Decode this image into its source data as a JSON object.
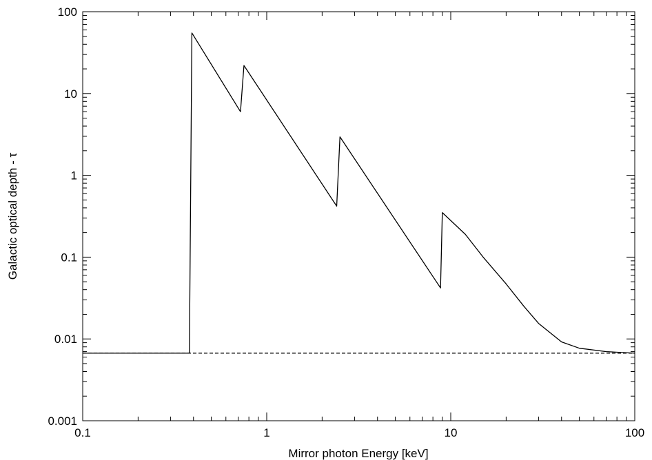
{
  "chart_data": {
    "type": "line",
    "xlabel": "Mirror photon Energy [keV]",
    "ylabel": "Galactic optical depth - τ",
    "x_scale": "log",
    "y_scale": "log",
    "xlim": [
      0.1,
      100
    ],
    "ylim": [
      0.001,
      100
    ],
    "grid": false,
    "x_ticks": [
      {
        "value": 0.1,
        "label": "0.1"
      },
      {
        "value": 1,
        "label": "1"
      },
      {
        "value": 10,
        "label": "10"
      },
      {
        "value": 100,
        "label": "100"
      }
    ],
    "y_ticks": [
      {
        "value": 0.001,
        "label": "0.001"
      },
      {
        "value": 0.01,
        "label": "0.01"
      },
      {
        "value": 0.1,
        "label": "0.1"
      },
      {
        "value": 1,
        "label": "1"
      },
      {
        "value": 10,
        "label": "10"
      },
      {
        "value": 100,
        "label": "100"
      }
    ],
    "series": [
      {
        "style": "solid",
        "color": "#000000",
        "x": [
          0.1,
          0.38,
          0.392,
          0.72,
          0.752,
          2.4,
          2.5,
          8.8,
          9.0,
          12,
          15,
          20,
          25,
          30,
          40,
          50,
          70,
          100
        ],
        "y": [
          0.0067,
          0.0067,
          55,
          6,
          22,
          0.42,
          2.95,
          0.042,
          0.35,
          0.19,
          0.1,
          0.047,
          0.025,
          0.0155,
          0.0092,
          0.0077,
          0.007,
          0.0067
        ]
      },
      {
        "style": "dashed",
        "color": "#000000",
        "x": [
          0.1,
          100
        ],
        "y": [
          0.0067,
          0.0067
        ]
      }
    ]
  }
}
